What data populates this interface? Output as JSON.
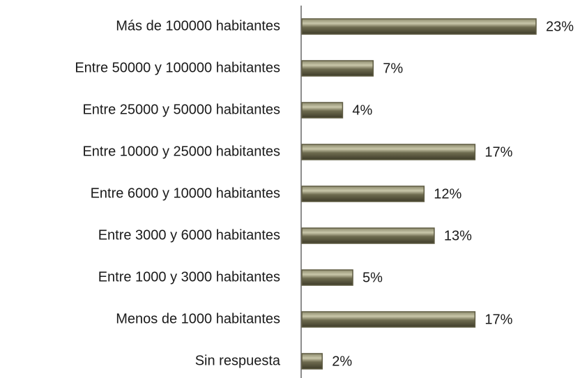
{
  "chart_data": {
    "type": "barh",
    "categories": [
      "Más de 100000 habitantes",
      "Entre 50000 y 100000 habitantes",
      "Entre 25000 y 50000 habitantes",
      "Entre 10000 y 25000 habitantes",
      "Entre 6000 y 10000 habitantes",
      "Entre 3000 y 6000 habitantes",
      "Entre 1000 y 3000 habitantes",
      "Menos de 1000 habitantes",
      "Sin respuesta"
    ],
    "values": [
      23,
      7,
      4,
      17,
      12,
      13,
      5,
      17,
      2
    ],
    "value_labels": [
      "23%",
      "7%",
      "4%",
      "17%",
      "12%",
      "13%",
      "5%",
      "17%",
      "2%"
    ],
    "color": "#5e5b42"
  }
}
